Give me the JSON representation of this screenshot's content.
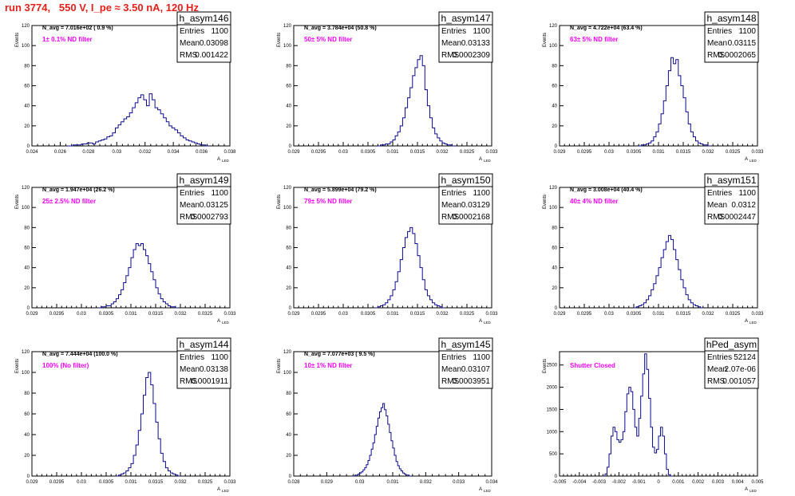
{
  "page": {
    "title": "run 3774,   550 V, I_pe ≈ 3.50 nA, 120 Hz"
  },
  "colors": {
    "title": "#e8201a",
    "histogram": "#0a0a96",
    "annotation": "#ff00ff",
    "axis": "#000000"
  },
  "chart_data": [
    {
      "type": "histogram",
      "name": "h_asym146",
      "navg": "N_avg = 7.016e+02 ( 0.9 %)",
      "note": "1± 0.1% ND filter",
      "stats": {
        "Entries": "1100",
        "Mean": "0.03098",
        "RMS": "0.001422"
      },
      "xlim": [
        0.024,
        0.038
      ],
      "ylim": [
        0,
        120
      ],
      "xticks": [
        "0.024",
        "0.026",
        "0.028",
        "0.03",
        "0.032",
        "0.034",
        "0.036",
        "0.038"
      ],
      "yticks": [
        "0",
        "20",
        "40",
        "60",
        "80",
        "100",
        "120"
      ],
      "xlabel": "A",
      "xlabel_sub": "LED",
      "ylabel": "Events",
      "x0": 0.0265,
      "dx": 0.0002,
      "values": [
        0,
        0,
        1,
        1,
        1,
        2,
        2,
        3,
        3,
        2,
        4,
        5,
        6,
        7,
        9,
        10,
        13,
        18,
        21,
        24,
        27,
        29,
        33,
        38,
        43,
        48,
        51,
        46,
        40,
        52,
        46,
        38,
        36,
        32,
        28,
        24,
        20,
        18,
        16,
        13,
        10,
        8,
        6,
        5,
        4,
        3,
        2,
        1,
        1,
        0
      ]
    },
    {
      "type": "histogram",
      "name": "h_asym147",
      "navg": "N_avg = 3.784e+04 (50.8 %)",
      "note": "50± 5% ND filter",
      "stats": {
        "Entries": "1100",
        "Mean": "0.03133",
        "RMS": "0.0002309"
      },
      "xlim": [
        0.029,
        0.033
      ],
      "ylim": [
        0,
        120
      ],
      "xticks": [
        "0.029",
        "0.0295",
        "0.03",
        "0.0305",
        "0.031",
        "0.0315",
        "0.032",
        "0.0325",
        "0.033"
      ],
      "yticks": [
        "0",
        "20",
        "40",
        "60",
        "80",
        "100",
        "120"
      ],
      "xlabel": "A",
      "xlabel_sub": "LED",
      "ylabel": "Events",
      "x0": 0.0307,
      "dx": 5e-05,
      "values": [
        0,
        1,
        1,
        2,
        2,
        4,
        6,
        10,
        14,
        20,
        28,
        38,
        48,
        58,
        70,
        78,
        86,
        90,
        80,
        56,
        40,
        28,
        18,
        12,
        8,
        5,
        3,
        2,
        1,
        1,
        0
      ]
    },
    {
      "type": "histogram",
      "name": "h_asym148",
      "navg": "N_avg = 4.722e+04 (63.4 %)",
      "note": "63± 5% ND filter",
      "stats": {
        "Entries": "1100",
        "Mean": "0.03115",
        "RMS": "0.0002065"
      },
      "xlim": [
        0.029,
        0.033
      ],
      "ylim": [
        0,
        120
      ],
      "xticks": [
        "0.029",
        "0.0295",
        "0.03",
        "0.0305",
        "0.031",
        "0.0315",
        "0.032",
        "0.0325",
        "0.033"
      ],
      "yticks": [
        "0",
        "20",
        "40",
        "60",
        "80",
        "100",
        "120"
      ],
      "xlabel": "A",
      "xlabel_sub": "LED",
      "ylabel": "Events",
      "x0": 0.0306,
      "dx": 5e-05,
      "values": [
        0,
        1,
        1,
        2,
        3,
        5,
        9,
        14,
        22,
        32,
        45,
        60,
        75,
        88,
        82,
        86,
        70,
        60,
        48,
        34,
        22,
        14,
        9,
        5,
        3,
        2,
        1,
        1,
        0
      ]
    },
    {
      "type": "histogram",
      "name": "h_asym149",
      "navg": "N_avg = 1.947e+04 (26.2 %)",
      "note": "25± 2.5% ND filter",
      "stats": {
        "Entries": "1100",
        "Mean": "0.03125",
        "RMS": "0.0002793"
      },
      "xlim": [
        0.029,
        0.033
      ],
      "ylim": [
        0,
        120
      ],
      "xticks": [
        "0.029",
        "0.0295",
        "0.03",
        "0.0305",
        "0.031",
        "0.0315",
        "0.032",
        "0.0325",
        "0.033"
      ],
      "yticks": [
        "0",
        "20",
        "40",
        "60",
        "80",
        "100",
        "120"
      ],
      "xlabel": "A",
      "xlabel_sub": "LED",
      "ylabel": "Events",
      "x0": 0.03035,
      "dx": 5e-05,
      "values": [
        0,
        1,
        1,
        2,
        2,
        4,
        6,
        9,
        13,
        18,
        25,
        32,
        40,
        50,
        58,
        64,
        62,
        64,
        58,
        52,
        44,
        36,
        28,
        20,
        14,
        9,
        6,
        4,
        2,
        1,
        1,
        0
      ]
    },
    {
      "type": "histogram",
      "name": "h_asym150",
      "navg": "N_avg = 5.899e+04 (79.2 %)",
      "note": "79± 5% ND filter",
      "stats": {
        "Entries": "1100",
        "Mean": "0.03129",
        "RMS": "0.0002168"
      },
      "xlim": [
        0.029,
        0.033
      ],
      "ylim": [
        0,
        120
      ],
      "xticks": [
        "0.029",
        "0.0295",
        "0.03",
        "0.0305",
        "0.031",
        "0.0315",
        "0.032",
        "0.0325",
        "0.033"
      ],
      "yticks": [
        "0",
        "20",
        "40",
        "60",
        "80",
        "100",
        "120"
      ],
      "xlabel": "A",
      "xlabel_sub": "LED",
      "ylabel": "Events",
      "x0": 0.03065,
      "dx": 5e-05,
      "values": [
        0,
        1,
        2,
        3,
        5,
        8,
        12,
        18,
        26,
        36,
        48,
        60,
        70,
        76,
        80,
        74,
        64,
        52,
        40,
        28,
        18,
        12,
        8,
        5,
        3,
        2,
        1,
        0
      ]
    },
    {
      "type": "histogram",
      "name": "h_asym151",
      "navg": "N_avg = 3.008e+04 (40.4 %)",
      "note": "40± 4% ND filter",
      "stats": {
        "Entries": "1100",
        "Mean": "0.0312",
        "RMS": "0.0002447"
      },
      "xlim": [
        0.029,
        0.033
      ],
      "ylim": [
        0,
        120
      ],
      "xticks": [
        "0.029",
        "0.0295",
        "0.03",
        "0.0305",
        "0.031",
        "0.0315",
        "0.032",
        "0.0325",
        "0.033"
      ],
      "yticks": [
        "0",
        "20",
        "40",
        "60",
        "80",
        "100",
        "120"
      ],
      "xlabel": "A",
      "xlabel_sub": "LED",
      "ylabel": "Events",
      "x0": 0.0305,
      "dx": 5e-05,
      "values": [
        0,
        1,
        2,
        3,
        5,
        8,
        12,
        18,
        24,
        32,
        40,
        50,
        58,
        66,
        72,
        68,
        58,
        48,
        38,
        28,
        20,
        13,
        8,
        5,
        3,
        2,
        1,
        0
      ]
    },
    {
      "type": "histogram",
      "name": "h_asym144",
      "navg": "N_avg = 7.444e+04 (100.0 %)",
      "note": "100% (No filter)",
      "stats": {
        "Entries": "1100",
        "Mean": "0.03138",
        "RMS": "0.0001911"
      },
      "xlim": [
        0.029,
        0.033
      ],
      "ylim": [
        0,
        120
      ],
      "xticks": [
        "0.029",
        "0.0295",
        "0.03",
        "0.0305",
        "0.031",
        "0.0315",
        "0.032",
        "0.0325",
        "0.033"
      ],
      "yticks": [
        "0",
        "20",
        "40",
        "60",
        "80",
        "100",
        "120"
      ],
      "xlabel": "A",
      "xlabel_sub": "LED",
      "ylabel": "Events",
      "x0": 0.0307,
      "dx": 5e-05,
      "values": [
        0,
        1,
        2,
        3,
        5,
        8,
        12,
        20,
        30,
        44,
        60,
        78,
        95,
        100,
        88,
        70,
        52,
        36,
        22,
        14,
        8,
        5,
        3,
        2,
        1,
        0
      ]
    },
    {
      "type": "histogram",
      "name": "h_asym145",
      "navg": "N_avg = 7.077e+03 ( 9.5 %)",
      "note": "10± 1% ND filter",
      "stats": {
        "Entries": "1100",
        "Mean": "0.03107",
        "RMS": "0.0003951"
      },
      "xlim": [
        0.028,
        0.034
      ],
      "ylim": [
        0,
        120
      ],
      "xticks": [
        "0.028",
        "0.029",
        "0.03",
        "0.031",
        "0.032",
        "0.033",
        "0.034"
      ],
      "yticks": [
        "0",
        "20",
        "40",
        "60",
        "80",
        "100",
        "120"
      ],
      "xlabel": "A",
      "xlabel_sub": "LED",
      "ylabel": "Events",
      "x0": 0.0298,
      "dx": 5e-05,
      "values": [
        0,
        1,
        1,
        2,
        3,
        4,
        6,
        8,
        11,
        15,
        20,
        26,
        32,
        40,
        48,
        56,
        62,
        66,
        70,
        64,
        58,
        50,
        42,
        34,
        27,
        20,
        14,
        10,
        7,
        5,
        3,
        2,
        1,
        1,
        0
      ]
    },
    {
      "type": "histogram",
      "name": "hPed_asym",
      "navg": "",
      "note": "Shutter Closed",
      "stats": {
        "Entries": "52124",
        "Mean": "2.07e-06",
        "RMS": "0.001057"
      },
      "xlim": [
        -0.005,
        0.005
      ],
      "ylim": [
        0,
        2800
      ],
      "xticks": [
        "-0.005",
        "-0.004",
        "-0.003",
        "-0.002",
        "-0.001",
        "0",
        "0.001",
        "0.002",
        "0.003",
        "0.004",
        "0.005"
      ],
      "yticks": [
        "0",
        "500",
        "1000",
        "1500",
        "2000",
        "2500"
      ],
      "xlabel": "A",
      "xlabel_sub": "LED",
      "ylabel": "Events",
      "x0": -0.0028,
      "dx": 0.0001,
      "values": [
        0,
        50,
        200,
        500,
        900,
        1100,
        1000,
        820,
        760,
        820,
        1000,
        1450,
        1850,
        2000,
        1900,
        1500,
        1100,
        900,
        1300,
        1800,
        2300,
        2750,
        2400,
        1750,
        1100,
        650,
        520,
        600,
        900,
        1100,
        900,
        500,
        150,
        30,
        0
      ]
    }
  ]
}
